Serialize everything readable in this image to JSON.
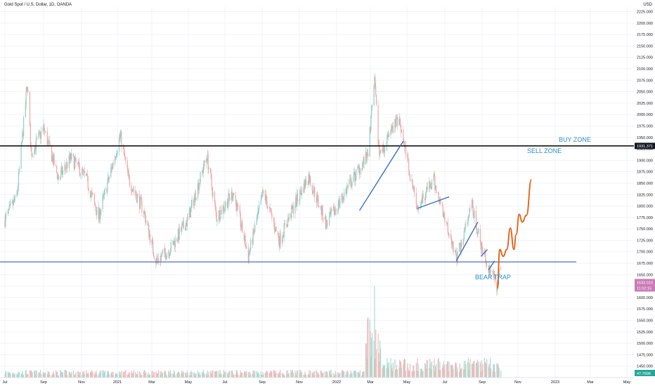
{
  "header": {
    "title": "Gold Spot / U.S. Dollar, 1D, OANDA",
    "currency": "USD"
  },
  "colors": {
    "up": "#8fcfc3",
    "down": "#f3a6a6",
    "volume_up": "#a8dcd3",
    "volume_down": "#f5b8b8",
    "support_line": "#1f4fb0",
    "resistance_line": "#000000",
    "trend_line": "#2b63c7",
    "projection": "#e85a0e",
    "annotation_text": "#2a8fd0",
    "grid": "#f0f3fa",
    "axis_text": "#131722",
    "current_price_bg": "#c97bb6"
  },
  "badges": {
    "resistance_price": "1931.371",
    "current_price": "1633.010",
    "countdown": "11:02:15",
    "volume": "47.769K"
  },
  "chart_data": {
    "type": "candlestick",
    "title": "Gold Spot / U.S. Dollar, 1D, OANDA",
    "ylabel": "USD",
    "ylim": [
      1425,
      2235
    ],
    "yticks": [
      1450,
      1475,
      1500,
      1525,
      1550,
      1575,
      1600,
      1625,
      1650,
      1675,
      1700,
      1725,
      1750,
      1775,
      1800,
      1825,
      1850,
      1875,
      1900,
      1925,
      1950,
      1975,
      2000,
      2025,
      2050,
      2075,
      2100,
      2125,
      2150,
      2175,
      2200,
      2225
    ],
    "x_ticks": [
      "Jul",
      "Sep",
      "Nov",
      "2021",
      "Mar",
      "May",
      "Jul",
      "Sep",
      "Nov",
      "2022",
      "Mar",
      "May",
      "Jul",
      "Sep",
      "Nov",
      "2023",
      "Mar",
      "May"
    ],
    "price_path": [
      {
        "date": "2020-07-01",
        "close": 1770
      },
      {
        "date": "2020-07-20",
        "close": 1820
      },
      {
        "date": "2020-08-06",
        "close": 2067
      },
      {
        "date": "2020-08-12",
        "close": 1915
      },
      {
        "date": "2020-09-01",
        "close": 1970
      },
      {
        "date": "2020-09-25",
        "close": 1860
      },
      {
        "date": "2020-10-15",
        "close": 1905
      },
      {
        "date": "2020-11-09",
        "close": 1860
      },
      {
        "date": "2020-11-30",
        "close": 1775
      },
      {
        "date": "2021-01-06",
        "close": 1955
      },
      {
        "date": "2021-01-20",
        "close": 1860
      },
      {
        "date": "2021-02-15",
        "close": 1790
      },
      {
        "date": "2021-03-08",
        "close": 1680
      },
      {
        "date": "2021-03-31",
        "close": 1705
      },
      {
        "date": "2021-04-30",
        "close": 1770
      },
      {
        "date": "2021-06-01",
        "close": 1910
      },
      {
        "date": "2021-06-17",
        "close": 1775
      },
      {
        "date": "2021-07-15",
        "close": 1830
      },
      {
        "date": "2021-08-09",
        "close": 1690
      },
      {
        "date": "2021-09-03",
        "close": 1830
      },
      {
        "date": "2021-09-29",
        "close": 1725
      },
      {
        "date": "2021-10-25",
        "close": 1805
      },
      {
        "date": "2021-11-16",
        "close": 1865
      },
      {
        "date": "2021-12-15",
        "close": 1760
      },
      {
        "date": "2022-01-25",
        "close": 1850
      },
      {
        "date": "2022-02-24",
        "close": 1910
      },
      {
        "date": "2022-03-08",
        "close": 2070
      },
      {
        "date": "2022-03-16",
        "close": 1910
      },
      {
        "date": "2022-04-18",
        "close": 1995
      },
      {
        "date": "2022-05-16",
        "close": 1800
      },
      {
        "date": "2022-06-13",
        "close": 1855
      },
      {
        "date": "2022-07-21",
        "close": 1685
      },
      {
        "date": "2022-08-15",
        "close": 1800
      },
      {
        "date": "2022-09-01",
        "close": 1700
      },
      {
        "date": "2022-09-27",
        "close": 1625
      },
      {
        "date": "2022-10-03",
        "close": 1670
      }
    ],
    "horizontal_levels": [
      {
        "value": 1931.371,
        "style": "black"
      },
      {
        "value": 1678,
        "style": "blue"
      }
    ],
    "trend_lines": [
      {
        "from": {
          "date": "2022-02-10",
          "value": 1790
        },
        "to": {
          "date": "2022-04-25",
          "value": 1942
        }
      },
      {
        "from": {
          "date": "2022-05-18",
          "value": 1795
        },
        "to": {
          "date": "2022-07-08",
          "value": 1820
        }
      },
      {
        "from": {
          "date": "2022-07-20",
          "value": 1680
        },
        "to": {
          "date": "2022-08-25",
          "value": 1765
        }
      },
      {
        "from": {
          "date": "2022-08-30",
          "value": 1690
        },
        "to": {
          "date": "2022-09-10",
          "value": 1705
        }
      },
      {
        "from": {
          "date": "2022-09-12",
          "value": 1660
        },
        "to": {
          "date": "2022-09-22",
          "value": 1680
        }
      }
    ],
    "projection": [
      {
        "date": "2022-09-27",
        "value": 1620
      },
      {
        "date": "2022-10-01",
        "value": 1705
      },
      {
        "date": "2022-10-07",
        "value": 1690
      },
      {
        "date": "2022-10-13",
        "value": 1705
      },
      {
        "date": "2022-10-19",
        "value": 1752
      },
      {
        "date": "2022-10-25",
        "value": 1705
      },
      {
        "date": "2022-10-29",
        "value": 1738
      },
      {
        "date": "2022-11-03",
        "value": 1782
      },
      {
        "date": "2022-11-08",
        "value": 1765
      },
      {
        "date": "2022-11-15",
        "value": 1780
      },
      {
        "date": "2022-11-23",
        "value": 1858
      }
    ],
    "annotations": [
      {
        "text": "BUY ZONE"
      },
      {
        "text": "SELL ZONE"
      },
      {
        "text": "BEAR TRAP"
      }
    ]
  }
}
